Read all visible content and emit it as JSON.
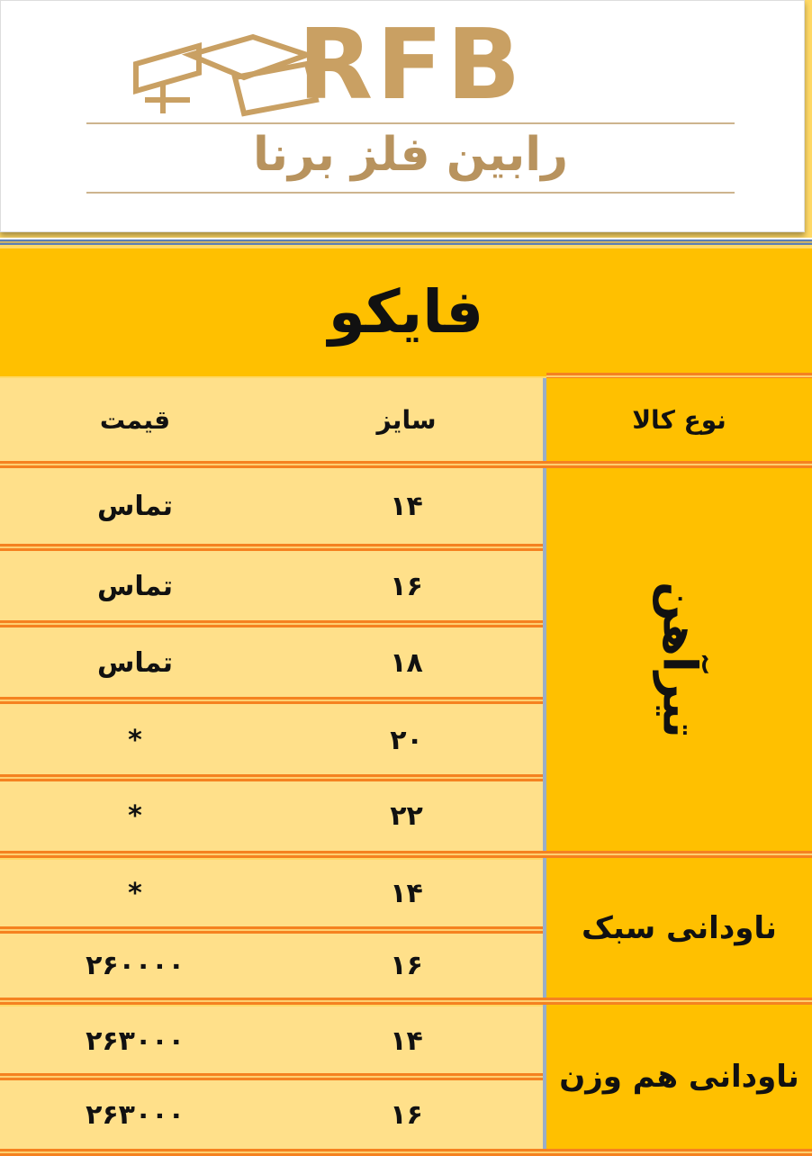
{
  "logo": {
    "latin": "RFB",
    "persian": "رابین فلز برنا",
    "colors": {
      "gold": "#c9a063"
    }
  },
  "title": "فایکو",
  "header": {
    "type": "نوع کالا",
    "size": "سایز",
    "price": "قیمت"
  },
  "colors": {
    "dark_yellow": "#ffc000",
    "light_yellow": "#ffe08a",
    "orange": "#f58220"
  },
  "groups": [
    {
      "name": "تیرآهن",
      "rows": [
        {
          "size": "۱۴",
          "price": "تماس"
        },
        {
          "size": "۱۶",
          "price": "تماس"
        },
        {
          "size": "۱۸",
          "price": "تماس"
        },
        {
          "size": "۲۰",
          "price": "*"
        },
        {
          "size": "۲۲",
          "price": "*"
        }
      ]
    },
    {
      "name": "ناودانی سبک",
      "rows": [
        {
          "size": "۱۴",
          "price": "*"
        },
        {
          "size": "۱۶",
          "price": "۲۶۰۰۰۰"
        }
      ]
    },
    {
      "name": "ناودانی هم وزن",
      "rows": [
        {
          "size": "۱۴",
          "price": "۲۶۳۰۰۰"
        },
        {
          "size": "۱۶",
          "price": "۲۶۳۰۰۰"
        }
      ]
    }
  ]
}
